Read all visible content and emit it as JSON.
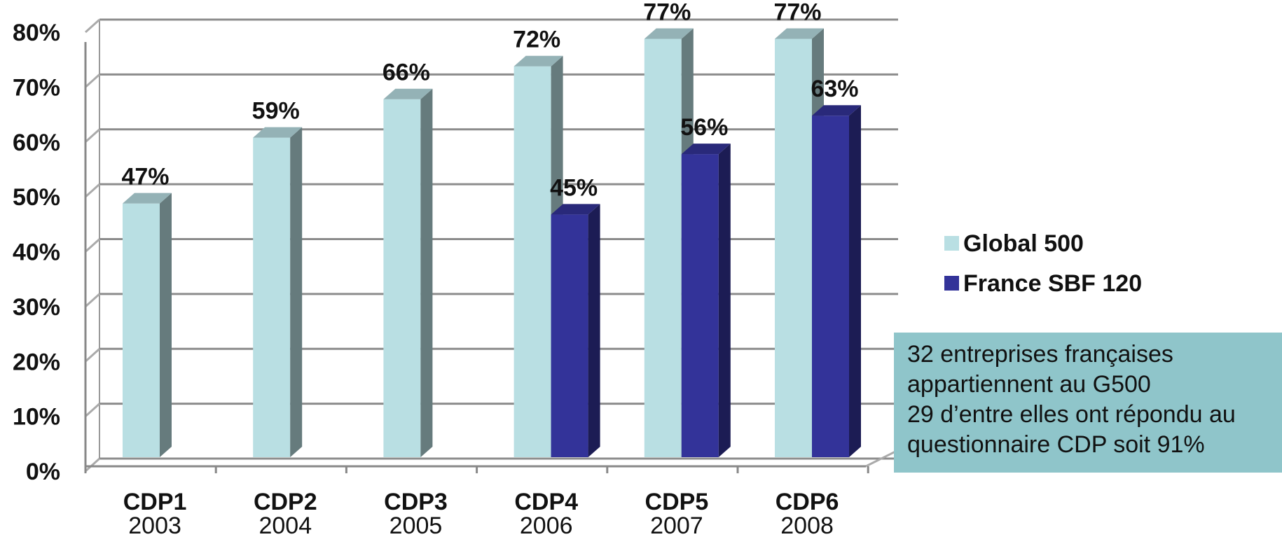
{
  "chart_data": {
    "type": "bar",
    "categories": [
      "CDP1",
      "CDP2",
      "CDP3",
      "CDP4",
      "CDP5",
      "CDP6"
    ],
    "years": [
      "2003",
      "2004",
      "2005",
      "2006",
      "2007",
      "2008"
    ],
    "y_ticks": [
      "0%",
      "10%",
      "20%",
      "30%",
      "40%",
      "50%",
      "60%",
      "70%",
      "80%"
    ],
    "ylim": [
      0,
      80
    ],
    "grid": true,
    "legend_position": "right",
    "series": [
      {
        "name": "Global 500",
        "color": "#b9dfe3",
        "values": [
          47,
          59,
          66,
          72,
          77,
          77
        ],
        "labels": [
          "47%",
          "59%",
          "66%",
          "72%",
          "77%",
          "77%"
        ]
      },
      {
        "name": "France SBF 120",
        "color": "#333399",
        "values": [
          null,
          null,
          null,
          45,
          56,
          63
        ],
        "labels": [
          null,
          null,
          null,
          "45%",
          "56%",
          "63%"
        ]
      }
    ]
  },
  "note": {
    "lines": [
      "32 entreprises françaises",
      "appartiennent au G500",
      "29 d’entre elles ont répondu au",
      "questionnaire CDP soit 91%"
    ]
  }
}
